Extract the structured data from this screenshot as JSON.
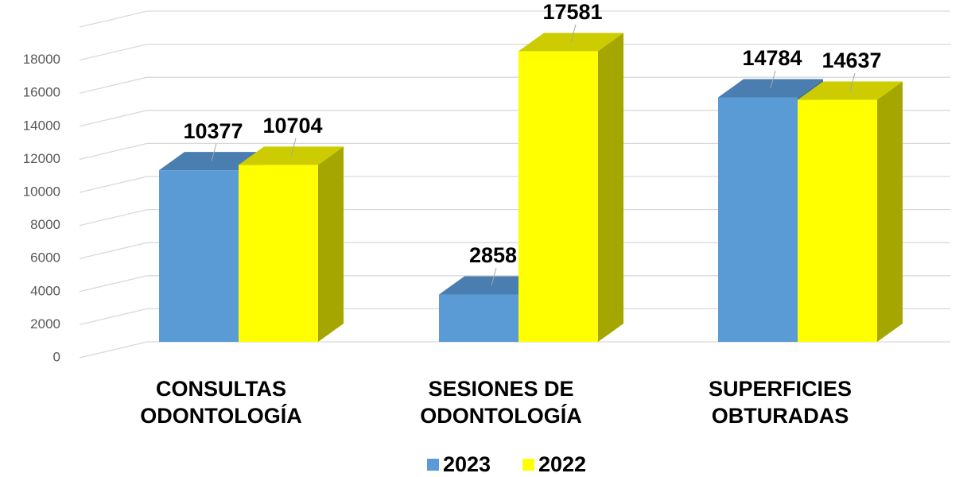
{
  "chart_data": {
    "type": "bar3d",
    "categories": [
      "CONSULTAS ODONTOLOGÍA",
      "SESIONES DE ODONTOLOGÍA",
      "SUPERFICIES OBTURADAS"
    ],
    "series": [
      {
        "name": "2023",
        "color": "#5b9bd5",
        "values": [
          10377,
          2858,
          14784
        ]
      },
      {
        "name": "2022",
        "color": "#ffff00",
        "values": [
          10704,
          17581,
          14637
        ]
      }
    ],
    "ylim": [
      0,
      20000
    ],
    "yticks": [
      0,
      2000,
      4000,
      6000,
      8000,
      10000,
      12000,
      14000,
      16000,
      18000
    ],
    "grid": true,
    "legend": "bottom"
  }
}
